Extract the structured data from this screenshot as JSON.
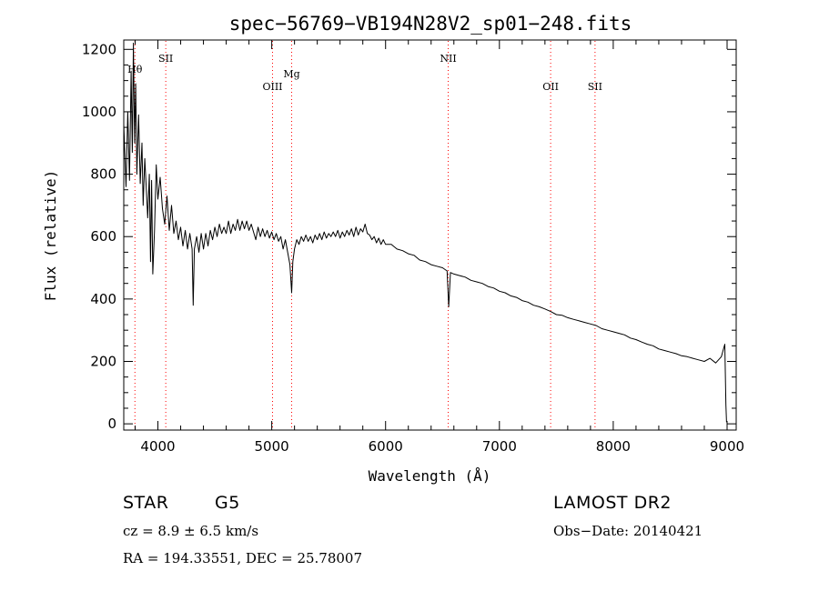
{
  "chart_data": {
    "type": "line",
    "title": "spec−56769−VB194N28V2_sp01−248.fits",
    "xlabel": "Wavelength (Å)",
    "ylabel": "Flux (relative)",
    "xlim": [
      3700,
      9080
    ],
    "ylim": [
      -20,
      1230
    ],
    "xticks": [
      4000,
      5000,
      6000,
      7000,
      8000,
      9000
    ],
    "yticks": [
      0,
      200,
      400,
      600,
      800,
      1000,
      1200
    ],
    "grid": false,
    "series": [
      {
        "color": "#000000",
        "points": [
          [
            3700,
            960
          ],
          [
            3720,
            760
          ],
          [
            3735,
            1000
          ],
          [
            3750,
            780
          ],
          [
            3765,
            1130
          ],
          [
            3775,
            870
          ],
          [
            3785,
            1220
          ],
          [
            3795,
            900
          ],
          [
            3805,
            1090
          ],
          [
            3815,
            800
          ],
          [
            3830,
            990
          ],
          [
            3845,
            770
          ],
          [
            3860,
            900
          ],
          [
            3870,
            700
          ],
          [
            3885,
            850
          ],
          [
            3900,
            740
          ],
          [
            3910,
            660
          ],
          [
            3925,
            800
          ],
          [
            3935,
            520
          ],
          [
            3945,
            780
          ],
          [
            3955,
            480
          ],
          [
            3970,
            620
          ],
          [
            3985,
            830
          ],
          [
            4000,
            720
          ],
          [
            4020,
            790
          ],
          [
            4040,
            690
          ],
          [
            4060,
            640
          ],
          [
            4080,
            730
          ],
          [
            4100,
            620
          ],
          [
            4120,
            700
          ],
          [
            4140,
            610
          ],
          [
            4160,
            650
          ],
          [
            4180,
            590
          ],
          [
            4200,
            630
          ],
          [
            4220,
            570
          ],
          [
            4240,
            620
          ],
          [
            4260,
            560
          ],
          [
            4280,
            610
          ],
          [
            4300,
            560
          ],
          [
            4310,
            380
          ],
          [
            4320,
            560
          ],
          [
            4340,
            600
          ],
          [
            4360,
            550
          ],
          [
            4380,
            610
          ],
          [
            4400,
            560
          ],
          [
            4420,
            610
          ],
          [
            4440,
            570
          ],
          [
            4460,
            620
          ],
          [
            4480,
            590
          ],
          [
            4500,
            630
          ],
          [
            4520,
            600
          ],
          [
            4540,
            640
          ],
          [
            4560,
            610
          ],
          [
            4580,
            630
          ],
          [
            4600,
            610
          ],
          [
            4620,
            650
          ],
          [
            4640,
            610
          ],
          [
            4660,
            640
          ],
          [
            4680,
            620
          ],
          [
            4700,
            655
          ],
          [
            4720,
            620
          ],
          [
            4740,
            650
          ],
          [
            4760,
            625
          ],
          [
            4780,
            650
          ],
          [
            4800,
            620
          ],
          [
            4820,
            640
          ],
          [
            4840,
            615
          ],
          [
            4860,
            590
          ],
          [
            4880,
            630
          ],
          [
            4900,
            600
          ],
          [
            4920,
            625
          ],
          [
            4940,
            600
          ],
          [
            4960,
            620
          ],
          [
            4980,
            595
          ],
          [
            5000,
            615
          ],
          [
            5020,
            590
          ],
          [
            5040,
            610
          ],
          [
            5060,
            585
          ],
          [
            5080,
            600
          ],
          [
            5100,
            560
          ],
          [
            5120,
            590
          ],
          [
            5140,
            550
          ],
          [
            5160,
            510
          ],
          [
            5175,
            420
          ],
          [
            5185,
            520
          ],
          [
            5200,
            560
          ],
          [
            5220,
            590
          ],
          [
            5240,
            575
          ],
          [
            5260,
            600
          ],
          [
            5280,
            585
          ],
          [
            5300,
            605
          ],
          [
            5320,
            585
          ],
          [
            5340,
            600
          ],
          [
            5360,
            580
          ],
          [
            5380,
            605
          ],
          [
            5400,
            590
          ],
          [
            5420,
            610
          ],
          [
            5440,
            590
          ],
          [
            5460,
            615
          ],
          [
            5480,
            595
          ],
          [
            5500,
            610
          ],
          [
            5520,
            600
          ],
          [
            5540,
            615
          ],
          [
            5560,
            600
          ],
          [
            5580,
            620
          ],
          [
            5600,
            595
          ],
          [
            5620,
            615
          ],
          [
            5640,
            600
          ],
          [
            5660,
            620
          ],
          [
            5680,
            605
          ],
          [
            5700,
            625
          ],
          [
            5720,
            600
          ],
          [
            5740,
            630
          ],
          [
            5760,
            605
          ],
          [
            5780,
            625
          ],
          [
            5800,
            615
          ],
          [
            5820,
            640
          ],
          [
            5840,
            610
          ],
          [
            5860,
            605
          ],
          [
            5880,
            590
          ],
          [
            5900,
            600
          ],
          [
            5920,
            580
          ],
          [
            5940,
            595
          ],
          [
            5960,
            575
          ],
          [
            5980,
            590
          ],
          [
            6000,
            575
          ],
          [
            6050,
            575
          ],
          [
            6100,
            560
          ],
          [
            6150,
            555
          ],
          [
            6200,
            545
          ],
          [
            6250,
            540
          ],
          [
            6300,
            525
          ],
          [
            6350,
            520
          ],
          [
            6400,
            510
          ],
          [
            6450,
            505
          ],
          [
            6500,
            500
          ],
          [
            6540,
            490
          ],
          [
            6555,
            375
          ],
          [
            6570,
            485
          ],
          [
            6600,
            480
          ],
          [
            6650,
            475
          ],
          [
            6700,
            470
          ],
          [
            6750,
            460
          ],
          [
            6800,
            455
          ],
          [
            6850,
            450
          ],
          [
            6900,
            440
          ],
          [
            6950,
            435
          ],
          [
            7000,
            425
          ],
          [
            7050,
            420
          ],
          [
            7100,
            410
          ],
          [
            7150,
            405
          ],
          [
            7200,
            395
          ],
          [
            7250,
            390
          ],
          [
            7300,
            380
          ],
          [
            7350,
            375
          ],
          [
            7400,
            368
          ],
          [
            7450,
            360
          ],
          [
            7500,
            350
          ],
          [
            7550,
            348
          ],
          [
            7600,
            340
          ],
          [
            7650,
            335
          ],
          [
            7700,
            330
          ],
          [
            7750,
            325
          ],
          [
            7800,
            320
          ],
          [
            7850,
            315
          ],
          [
            7900,
            305
          ],
          [
            7950,
            300
          ],
          [
            8000,
            295
          ],
          [
            8050,
            290
          ],
          [
            8100,
            285
          ],
          [
            8150,
            275
          ],
          [
            8200,
            270
          ],
          [
            8250,
            262
          ],
          [
            8300,
            255
          ],
          [
            8350,
            250
          ],
          [
            8400,
            240
          ],
          [
            8450,
            235
          ],
          [
            8500,
            230
          ],
          [
            8550,
            225
          ],
          [
            8600,
            218
          ],
          [
            8650,
            215
          ],
          [
            8700,
            210
          ],
          [
            8750,
            205
          ],
          [
            8800,
            200
          ],
          [
            8850,
            210
          ],
          [
            8900,
            195
          ],
          [
            8950,
            215
          ],
          [
            8980,
            255
          ],
          [
            8990,
            60
          ],
          [
            8995,
            5
          ]
        ]
      }
    ],
    "lines": [
      {
        "label": "Hθ",
        "x": 3798,
        "label_y": 1125
      },
      {
        "label": "SII",
        "x": 4069,
        "label_y": 1160
      },
      {
        "label": "OIII",
        "x": 5007,
        "label_y": 1070
      },
      {
        "label": "Mg",
        "x": 5175,
        "label_y": 1110
      },
      {
        "label": "NII",
        "x": 6550,
        "label_y": 1160
      },
      {
        "label": "OII",
        "x": 7450,
        "label_y": 1070
      },
      {
        "label": "SII",
        "x": 7840,
        "label_y": 1070
      }
    ],
    "line_color": "#ff0000"
  },
  "info": {
    "class": "STAR",
    "subclass": "G5",
    "survey": "LAMOST DR2",
    "cz": "cz = 8.9 ± 6.5 km/s",
    "obsdate": "Obs−Date: 20140421",
    "radec": "RA = 194.33551, DEC =  25.78007"
  }
}
